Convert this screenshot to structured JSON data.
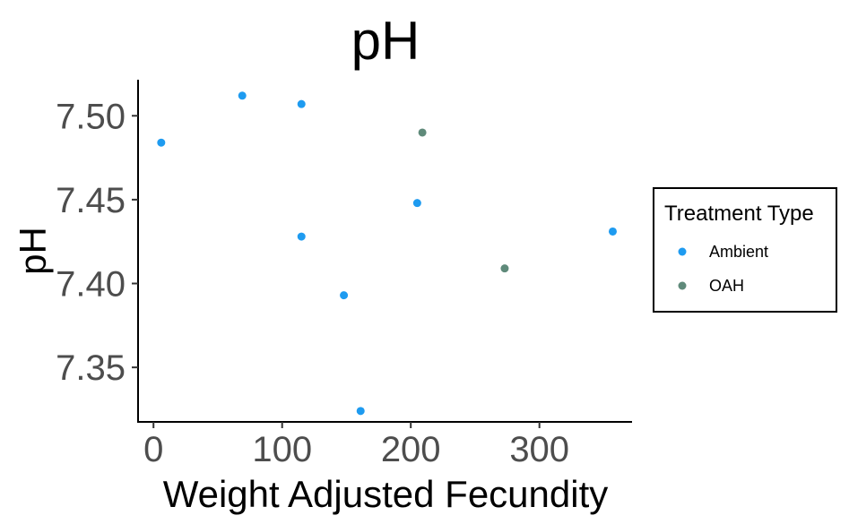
{
  "chart_data": {
    "type": "scatter",
    "title": "pH",
    "xlabel": "Weight Adjusted Fecundity",
    "ylabel": "pH",
    "xlim": [
      -12,
      372
    ],
    "ylim": [
      7.3175,
      7.5215
    ],
    "xticks": [
      0,
      100,
      200,
      300
    ],
    "xtick_labels": [
      "0",
      "100",
      "200",
      "300"
    ],
    "yticks": [
      7.35,
      7.4,
      7.45,
      7.5
    ],
    "ytick_labels": [
      "7.35",
      "7.40",
      "7.45",
      "7.50"
    ],
    "grid": false,
    "legend": {
      "title": "Treatment Type",
      "placement": "right"
    },
    "series": [
      {
        "name": "Ambient",
        "color": "#1e9bf0",
        "points": [
          {
            "x": 6,
            "y": 7.484
          },
          {
            "x": 69,
            "y": 7.512
          },
          {
            "x": 115,
            "y": 7.507
          },
          {
            "x": 115,
            "y": 7.428
          },
          {
            "x": 148,
            "y": 7.393
          },
          {
            "x": 161,
            "y": 7.324
          },
          {
            "x": 205,
            "y": 7.448
          },
          {
            "x": 357,
            "y": 7.431
          }
        ]
      },
      {
        "name": "OAH",
        "color": "#5f8a7a",
        "points": [
          {
            "x": 209,
            "y": 7.49
          },
          {
            "x": 273,
            "y": 7.409
          }
        ]
      }
    ]
  }
}
